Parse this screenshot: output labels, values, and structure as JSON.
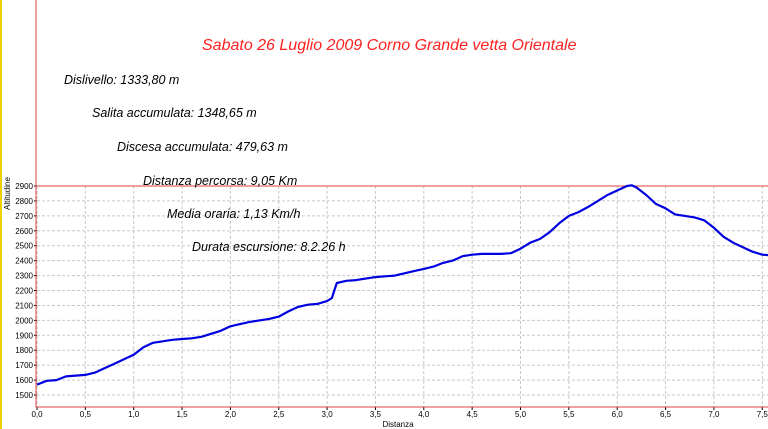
{
  "chart_data": {
    "type": "line",
    "title": "Sabato 26 Luglio 2009  Corno Grande vetta Orientale",
    "xlabel": "Distanza",
    "ylabel": "Altitudine",
    "xlim": [
      0,
      7.6
    ],
    "ylim": [
      1420,
      2900
    ],
    "grid": true,
    "xticks": [
      "0,0",
      "0,5",
      "1,0",
      "1,5",
      "2,0",
      "2,5",
      "3,0",
      "3,5",
      "4,0",
      "4,5",
      "5,0",
      "5,5",
      "6,0",
      "6,5",
      "7,0",
      "7,5"
    ],
    "yticks": [
      "1500",
      "1600",
      "1700",
      "1800",
      "1900",
      "2000",
      "2100",
      "2200",
      "2300",
      "2400",
      "2500",
      "2600",
      "2700",
      "2800",
      "2900"
    ],
    "line_color": "#0000e0",
    "annotations": [
      "Dislivello: 1333,80 m",
      "Salita accumulata: 1348,65 m",
      "Discesa accumulata: 479,63 m",
      "Distanza percorsa: 9,05 Km",
      "Media oraria: 1,13 Km/h",
      "Durata escursione: 8.2.26 h"
    ],
    "series": [
      {
        "x": [
          0,
          0.1,
          0.2,
          0.3,
          0.4,
          0.5,
          0.6,
          0.7,
          0.8,
          0.9,
          1.0,
          1.1,
          1.2,
          1.3,
          1.4,
          1.5,
          1.6,
          1.7,
          1.8,
          1.9,
          2.0,
          2.1,
          2.2,
          2.3,
          2.4,
          2.5,
          2.6,
          2.7,
          2.8,
          2.9,
          3.0,
          3.05,
          3.1,
          3.2,
          3.3,
          3.4,
          3.5,
          3.6,
          3.7,
          3.8,
          3.9,
          4.0,
          4.1,
          4.2,
          4.3,
          4.4,
          4.5,
          4.6,
          4.7,
          4.8,
          4.9,
          5.0,
          5.1,
          5.2,
          5.3,
          5.4,
          5.5,
          5.6,
          5.7,
          5.8,
          5.9,
          6.0,
          6.1,
          6.15,
          6.2,
          6.3,
          6.4,
          6.5,
          6.6,
          6.7,
          6.8,
          6.9,
          7.0,
          7.1,
          7.2,
          7.3,
          7.4,
          7.5,
          7.6
        ],
        "y": [
          1570,
          1595,
          1600,
          1625,
          1630,
          1635,
          1650,
          1680,
          1710,
          1740,
          1770,
          1820,
          1850,
          1860,
          1870,
          1875,
          1880,
          1890,
          1910,
          1930,
          1960,
          1975,
          1990,
          2000,
          2010,
          2025,
          2060,
          2090,
          2105,
          2110,
          2130,
          2150,
          2250,
          2265,
          2270,
          2280,
          2290,
          2295,
          2300,
          2315,
          2330,
          2345,
          2360,
          2385,
          2400,
          2430,
          2440,
          2445,
          2445,
          2445,
          2450,
          2480,
          2520,
          2545,
          2590,
          2650,
          2700,
          2725,
          2760,
          2800,
          2840,
          2870,
          2900,
          2905,
          2890,
          2840,
          2780,
          2750,
          2710,
          2700,
          2690,
          2670,
          2620,
          2560,
          2520,
          2490,
          2460,
          2440,
          2435
        ]
      }
    ]
  }
}
